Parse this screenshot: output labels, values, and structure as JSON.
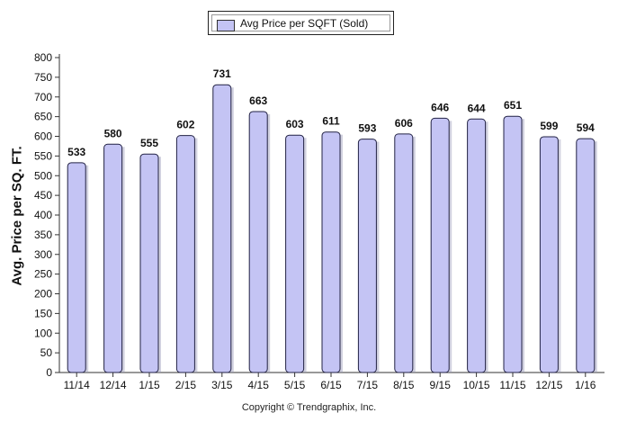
{
  "legend": {
    "label": "Avg Price per SQFT (Sold)"
  },
  "copyright": "Copyright © Trendgraphix, Inc.",
  "chart_data": {
    "type": "bar",
    "ylabel": "Avg. Price per SQ. FT.",
    "xlabel": "",
    "categories": [
      "11/14",
      "12/14",
      "1/15",
      "2/15",
      "3/15",
      "4/15",
      "5/15",
      "6/15",
      "7/15",
      "8/15",
      "9/15",
      "10/15",
      "11/15",
      "12/15",
      "1/16"
    ],
    "series": [
      {
        "name": "Avg Price per SQFT (Sold)",
        "values": [
          533,
          580,
          555,
          602,
          731,
          663,
          603,
          611,
          593,
          606,
          646,
          644,
          651,
          599,
          594
        ]
      }
    ],
    "ylim": [
      0,
      800
    ],
    "yticks": [
      0,
      50,
      100,
      150,
      200,
      250,
      300,
      350,
      400,
      450,
      500,
      550,
      600,
      650,
      700,
      750,
      800
    ],
    "bar_color": "#c4c4f4",
    "bar_border": "#222244",
    "grid": false,
    "legend_position": "top-center"
  }
}
